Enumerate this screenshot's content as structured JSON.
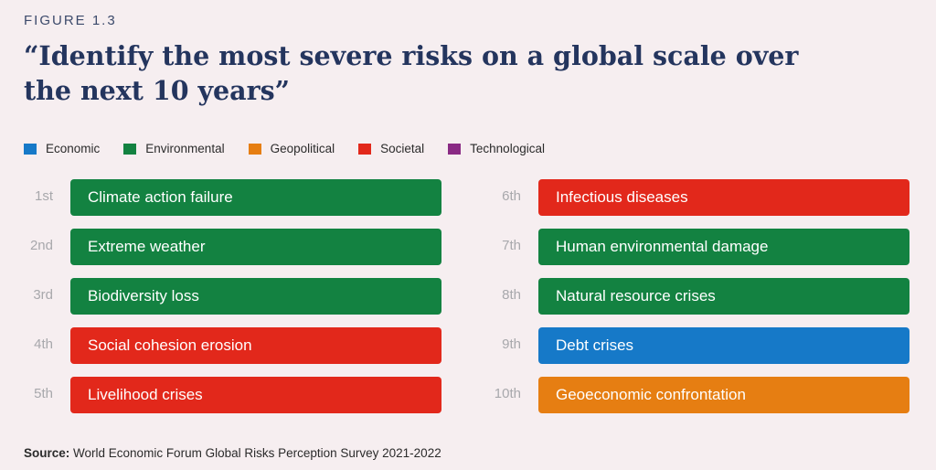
{
  "figure_label": "FIGURE 1.3",
  "title": "“Identify the most severe risks on a global scale over the next 10 years”",
  "source_label": "Source:",
  "source_text": "World Economic Forum Global Risks Perception Survey 2021-2022",
  "chart_data": {
    "type": "table",
    "legend": [
      {
        "name": "Economic",
        "color": "#1679c8"
      },
      {
        "name": "Environmental",
        "color": "#138241"
      },
      {
        "name": "Geopolitical",
        "color": "#e67e12"
      },
      {
        "name": "Societal",
        "color": "#e2281b"
      },
      {
        "name": "Technological",
        "color": "#8a2a84"
      }
    ],
    "legend_position": "top-left",
    "rows": [
      {
        "rank": "1st",
        "label": "Climate action failure",
        "category": "Environmental"
      },
      {
        "rank": "2nd",
        "label": "Extreme weather",
        "category": "Environmental"
      },
      {
        "rank": "3rd",
        "label": "Biodiversity loss",
        "category": "Environmental"
      },
      {
        "rank": "4th",
        "label": "Social cohesion erosion",
        "category": "Societal"
      },
      {
        "rank": "5th",
        "label": "Livelihood crises",
        "category": "Societal"
      },
      {
        "rank": "6th",
        "label": "Infectious diseases",
        "category": "Societal"
      },
      {
        "rank": "7th",
        "label": "Human environmental damage",
        "category": "Environmental"
      },
      {
        "rank": "8th",
        "label": "Natural resource crises",
        "category": "Environmental"
      },
      {
        "rank": "9th",
        "label": "Debt crises",
        "category": "Economic"
      },
      {
        "rank": "10th",
        "label": "Geoeconomic confrontation",
        "category": "Geopolitical"
      }
    ]
  }
}
